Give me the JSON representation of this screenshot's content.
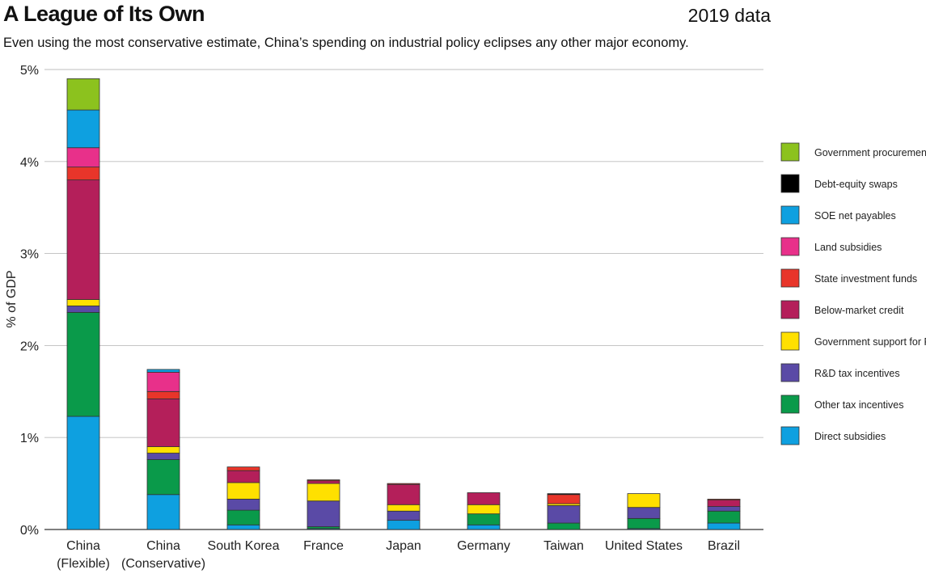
{
  "header": {
    "title": "A League of Its Own",
    "badge": "2019 data",
    "subtitle": "Even using the most conservative estimate, China’s spending on industrial policy eclipses any other major economy."
  },
  "chart_data": {
    "type": "bar",
    "stacked": true,
    "title": "A League of Its Own",
    "subtitle": "Even using the most conservative estimate, China’s spending on industrial policy eclipses any other major economy.",
    "xlabel": "",
    "ylabel": "% of GDP",
    "ylim": [
      0,
      5
    ],
    "yticks": [
      0,
      1,
      2,
      3,
      4,
      5
    ],
    "ytick_labels": [
      "0%",
      "1%",
      "2%",
      "3%",
      "4%",
      "5%"
    ],
    "grid": true,
    "legend_position": "right",
    "categories": [
      [
        "China",
        "(Flexible)"
      ],
      [
        "China",
        "(Conservative)"
      ],
      [
        "South Korea"
      ],
      [
        "France"
      ],
      [
        "Japan"
      ],
      [
        "Germany"
      ],
      [
        "Taiwan"
      ],
      [
        "United States"
      ],
      [
        "Brazil"
      ]
    ],
    "series": [
      {
        "name": "Direct subsidies",
        "color": "#0ea0e0",
        "values": [
          1.23,
          0.38,
          0.05,
          0.01,
          0.1,
          0.05,
          0.0,
          0.01,
          0.07
        ]
      },
      {
        "name": "Other tax incentives",
        "color": "#0a9a4a",
        "values": [
          1.13,
          0.38,
          0.16,
          0.02,
          0.0,
          0.12,
          0.07,
          0.11,
          0.13
        ]
      },
      {
        "name": "R&D tax incentives",
        "color": "#5a4aa6",
        "values": [
          0.07,
          0.07,
          0.12,
          0.28,
          0.1,
          0.0,
          0.19,
          0.12,
          0.05
        ]
      },
      {
        "name": "Government support for R&D",
        "color": "#ffe000",
        "values": [
          0.07,
          0.07,
          0.18,
          0.19,
          0.07,
          0.1,
          0.02,
          0.15,
          0.0
        ]
      },
      {
        "name": "Below-market credit",
        "color": "#b41f5a",
        "values": [
          1.3,
          0.52,
          0.13,
          0.03,
          0.22,
          0.13,
          0.0,
          0.0,
          0.07
        ]
      },
      {
        "name": "State investment funds",
        "color": "#e8352a",
        "values": [
          0.14,
          0.08,
          0.04,
          0.01,
          0.01,
          0.0,
          0.1,
          0.0,
          0.01
        ]
      },
      {
        "name": "Land subsidies",
        "color": "#e8308a",
        "values": [
          0.21,
          0.21,
          0.0,
          0.0,
          0.0,
          0.0,
          0.0,
          0.0,
          0.0
        ]
      },
      {
        "name": "SOE net payables",
        "color": "#0ea0e0",
        "values": [
          0.41,
          0.03,
          0.0,
          0.0,
          0.0,
          0.0,
          0.0,
          0.0,
          0.0
        ]
      },
      {
        "name": "Debt-equity swaps",
        "color": "#000000",
        "values": [
          0.0,
          0.0,
          0.0,
          0.0,
          0.0,
          0.0,
          0.01,
          0.0,
          0.0
        ]
      },
      {
        "name": "Government procurement",
        "color": "#8cc21e",
        "values": [
          0.34,
          0.0,
          0.0,
          0.0,
          0.0,
          0.0,
          0.0,
          0.0,
          0.0
        ]
      }
    ]
  }
}
